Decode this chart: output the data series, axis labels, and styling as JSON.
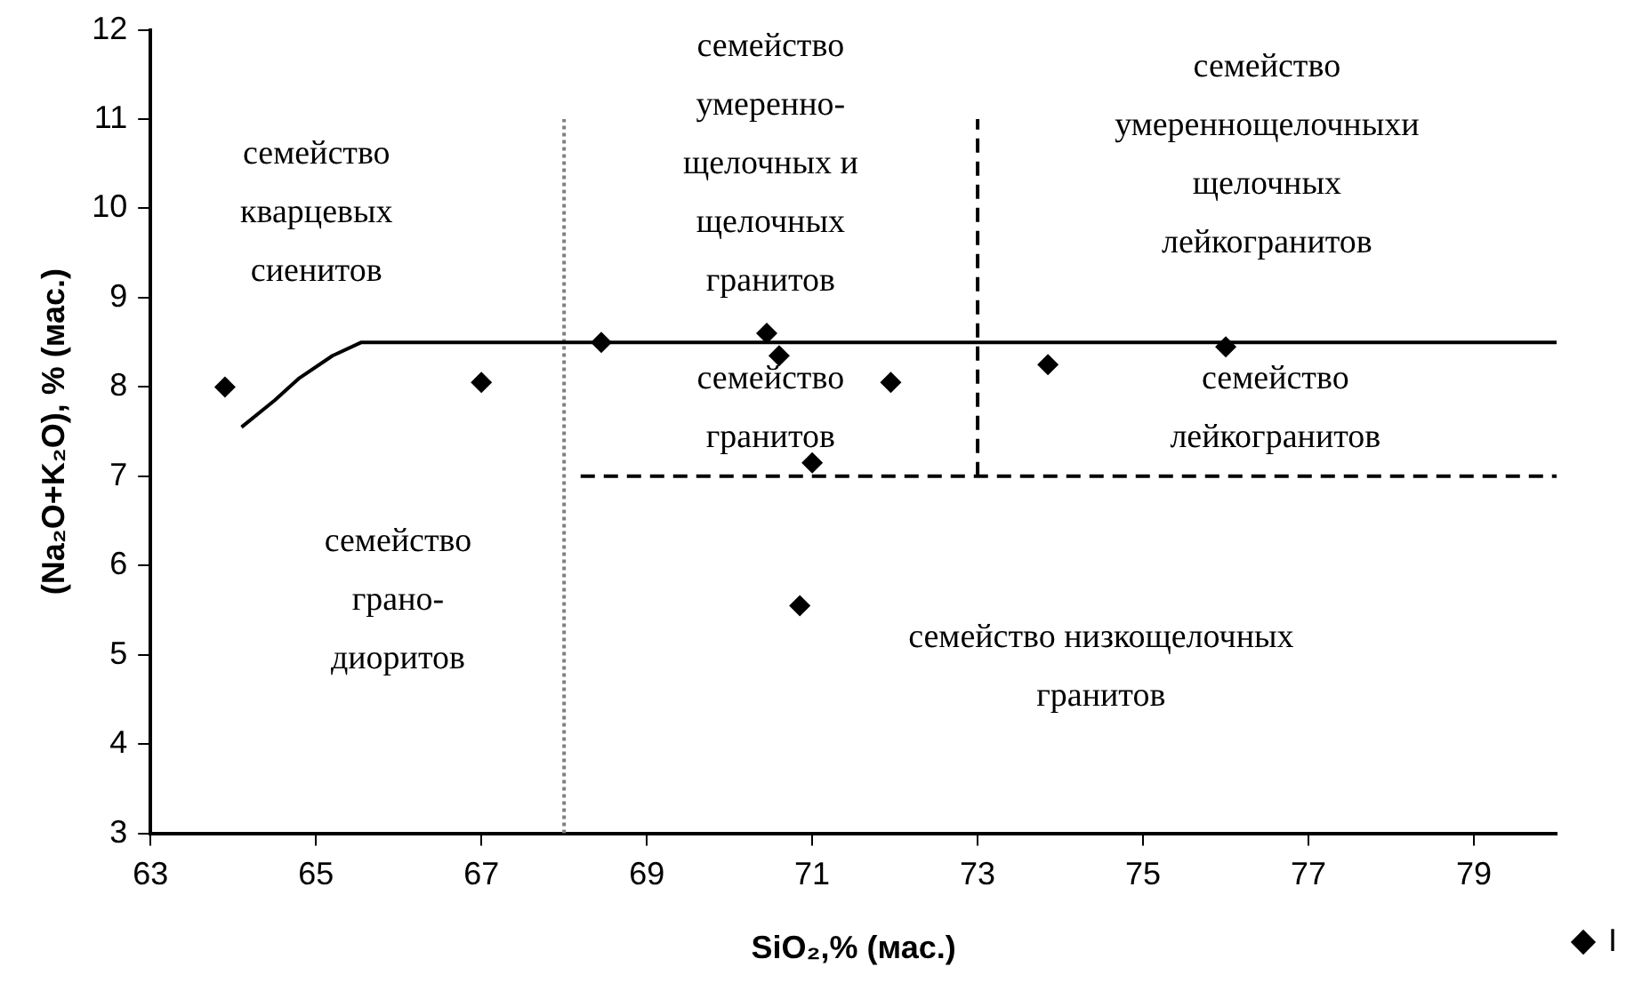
{
  "chart_data": {
    "type": "scatter",
    "xlabel": "SiO₂,% (мас.)",
    "ylabel": "(Na₂O+K₂O), % (мас.)",
    "xlim": [
      63,
      80
    ],
    "xticks": [
      63,
      65,
      67,
      69,
      71,
      73,
      75,
      77,
      79
    ],
    "ylim": [
      3,
      12
    ],
    "yticks": [
      3,
      4,
      5,
      6,
      7,
      8,
      9,
      10,
      11,
      12
    ],
    "grid": false,
    "legend": "right",
    "series": [
      {
        "name": "I",
        "type": "scatter",
        "color": "#000000",
        "marker": "diamond",
        "x": [
          63.9,
          67.0,
          68.45,
          70.45,
          70.6,
          71.95,
          71.0,
          70.85,
          73.85,
          76.0
        ],
        "values": [
          8.0,
          8.05,
          8.5,
          8.6,
          8.35,
          8.05,
          7.15,
          5.55,
          8.25,
          8.45
        ]
      },
      {
        "type": "line",
        "color": "#000000",
        "line_style": "solid",
        "marker": "none",
        "x": [
          64.1,
          64.5,
          64.8,
          65.2,
          65.55,
          80
        ],
        "values": [
          7.55,
          7.85,
          8.1,
          8.35,
          8.5,
          8.5
        ]
      },
      {
        "type": "line",
        "color": "#000000",
        "line_style": "dashed",
        "marker": "none",
        "x": [
          68.2,
          80
        ],
        "values": [
          7,
          7
        ]
      },
      {
        "type": "line",
        "color": "#000000",
        "line_style": "dashed",
        "marker": "none",
        "x": [
          73,
          73
        ],
        "values": [
          7,
          11
        ]
      },
      {
        "type": "line",
        "color": "#808080",
        "line_style": "dotted",
        "marker": "none",
        "x": [
          68,
          68
        ],
        "values": [
          3,
          11
        ]
      }
    ],
    "annotations": [
      "семейство\nкварцевых\nсиенитов",
      "семейство\nумеренно-\nщелочных и\nщелочных\nгранитов",
      "семейство\nумереннощелочныхи\nщелочных\nлейкогранитов",
      "семейство\nгранитов",
      "семейство\nлейкогранитов",
      "семейство\nграно-\nдиоритов",
      "семейство низкощелочных\nгранитов"
    ]
  }
}
